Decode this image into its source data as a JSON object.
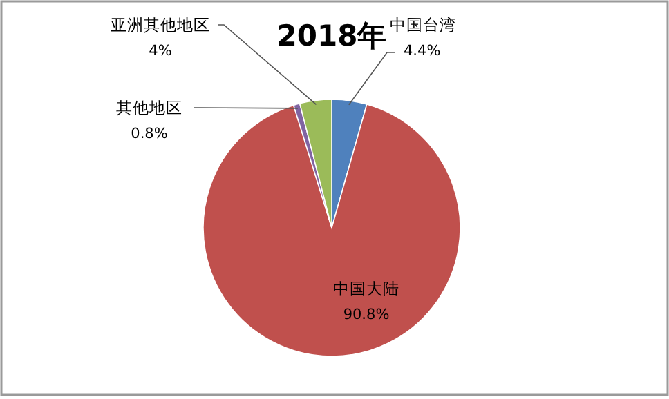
{
  "chart_data": {
    "type": "pie",
    "title": "2018年",
    "categories": [
      "中国台湾",
      "中国大陆",
      "其他地区",
      "亚洲其他地区"
    ],
    "values": [
      4.4,
      90.8,
      0.8,
      4
    ],
    "value_labels": [
      "4.4%",
      "90.8%",
      "0.8%",
      "4%"
    ],
    "colors": [
      "#4f81bd",
      "#c0504d",
      "#8064a2",
      "#9bbb59"
    ]
  }
}
